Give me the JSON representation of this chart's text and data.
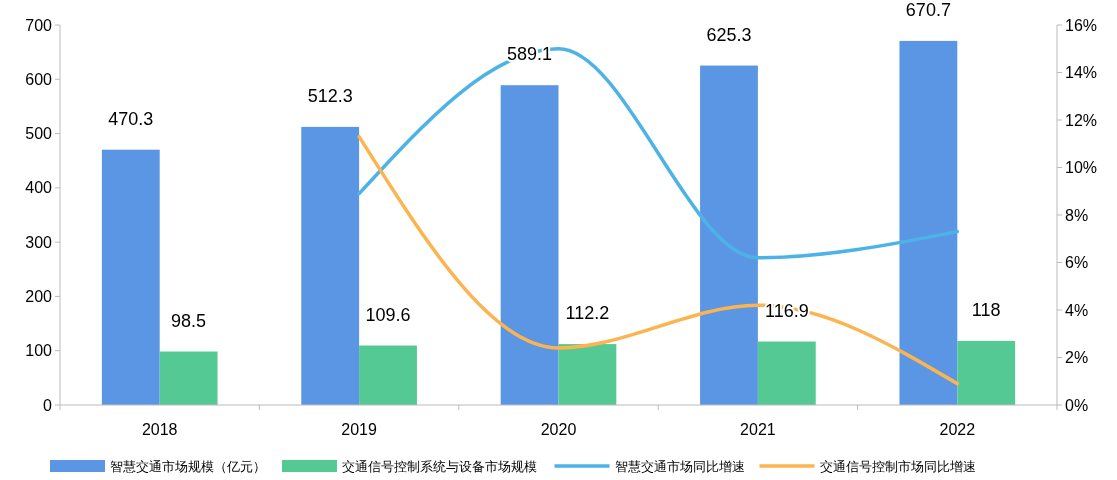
{
  "chart_data": {
    "type": "bar",
    "categories": [
      "2018",
      "2019",
      "2020",
      "2021",
      "2022"
    ],
    "series": [
      {
        "name": "智慧交通市场规模（亿元）",
        "color": "#5b96e5",
        "values": [
          470.3,
          512.3,
          589.1,
          625.3,
          670.7
        ],
        "value_labels": [
          "470.3",
          "512.3",
          "589.1",
          "625.3",
          "670.7"
        ]
      },
      {
        "name": "交通信号控制系统与设备市场规模",
        "color": "#55c993",
        "values": [
          98.5,
          109.6,
          112.2,
          116.9,
          118
        ],
        "value_labels": [
          "98.5",
          "109.6",
          "112.2",
          "116.9",
          "118"
        ]
      },
      {
        "name": "智慧交通市场同比增速",
        "type": "line",
        "axis": "y2",
        "color": "#4db3e6",
        "values": [
          null,
          8.9,
          15.0,
          6.2,
          7.3
        ]
      },
      {
        "name": "交通信号控制市场同比增速",
        "type": "line",
        "axis": "y2",
        "color": "#fbb450",
        "values": [
          null,
          11.3,
          2.4,
          4.2,
          0.9
        ]
      }
    ],
    "ylim": [
      0,
      700
    ],
    "yticks": [
      0,
      100,
      200,
      300,
      400,
      500,
      600,
      700
    ],
    "y2lim": [
      0,
      16
    ],
    "y2ticks": [
      {
        "value": 0,
        "label": "0%"
      },
      {
        "value": 2,
        "label": "2%"
      },
      {
        "value": 4,
        "label": "4%"
      },
      {
        "value": 6,
        "label": "6%"
      },
      {
        "value": 8,
        "label": "8%"
      },
      {
        "value": 10,
        "label": "10%"
      },
      {
        "value": 12,
        "label": "12%"
      },
      {
        "value": 14,
        "label": "14%"
      },
      {
        "value": 16,
        "label": "16%"
      }
    ],
    "grid": false,
    "legend": "bottom",
    "marker": "none",
    "line_style": "solid"
  }
}
